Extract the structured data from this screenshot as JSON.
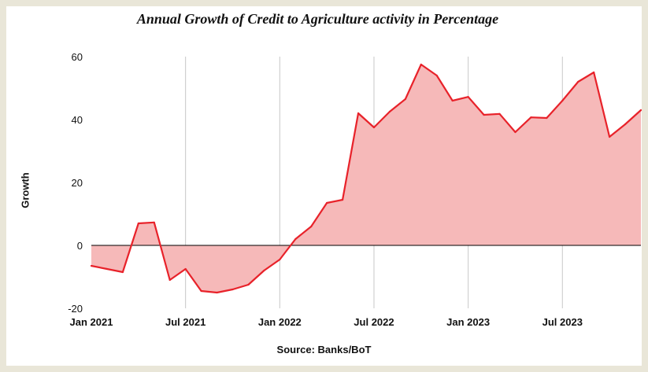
{
  "chart_data": {
    "type": "area",
    "title": "Annual Growth of Credit to Agriculture activity in Percentage",
    "xlabel": "Source: Banks/BoT",
    "ylabel": "Growth",
    "ylim": [
      -20,
      60
    ],
    "yticks": [
      -20,
      0,
      20,
      40,
      60
    ],
    "xticks": [
      "Jan 2021",
      "Jul 2021",
      "Jan 2022",
      "Jul 2022",
      "Jan 2023",
      "Jul 2023"
    ],
    "grid": "vertical",
    "colors": {
      "line": "#e8222a",
      "fill": "#f6b9b9",
      "zero": "#000000",
      "grid": "#c8c8c8"
    },
    "series": [
      {
        "x": [
          "2021-01",
          "2021-02",
          "2021-03",
          "2021-04",
          "2021-05",
          "2021-06",
          "2021-07",
          "2021-08",
          "2021-09",
          "2021-10",
          "2021-11",
          "2021-12",
          "2022-01",
          "2022-02",
          "2022-03",
          "2022-04",
          "2022-05",
          "2022-06",
          "2022-07",
          "2022-08",
          "2022-09",
          "2022-10",
          "2022-11",
          "2022-12",
          "2023-01",
          "2023-02",
          "2023-03",
          "2023-04",
          "2023-05",
          "2023-06",
          "2023-07",
          "2023-08",
          "2023-09",
          "2023-10",
          "2023-11",
          "2023-12"
        ],
        "values": [
          -6.5,
          -7.5,
          -8.5,
          7,
          7.3,
          -11,
          -7.5,
          -14.5,
          -15,
          -14,
          -12.5,
          -8,
          -4.5,
          2,
          6,
          13.5,
          14.5,
          42,
          37.5,
          42.5,
          46.5,
          57.5,
          54,
          46,
          47.2,
          41.5,
          41.8,
          36,
          40.7,
          40.5,
          46,
          52,
          55,
          34.5,
          38.5,
          43
        ]
      }
    ]
  }
}
